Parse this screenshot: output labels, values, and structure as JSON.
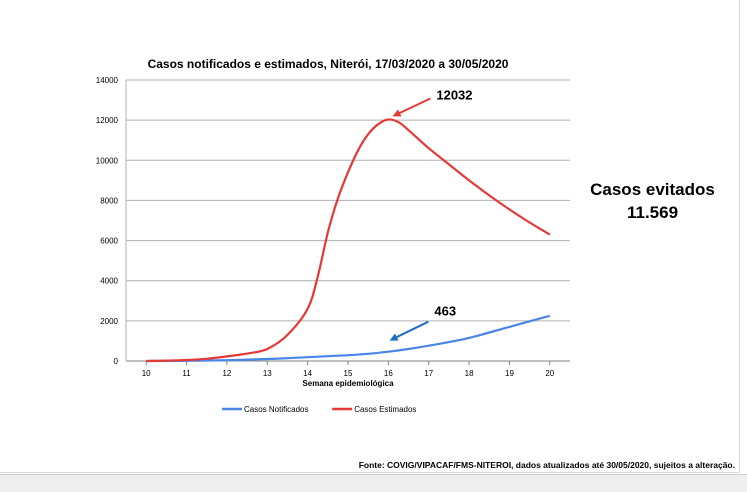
{
  "chart_data": {
    "type": "line",
    "title": "Casos notificados e estimados, Niterói, 17/03/2020 a 30/05/2020",
    "xlabel": "Semana epidemiológica",
    "ylabel": "",
    "x": [
      10,
      11,
      12,
      13,
      14,
      15,
      16,
      17,
      18,
      19,
      20
    ],
    "ylim": [
      0,
      14000
    ],
    "yticks": [
      0,
      2000,
      4000,
      6000,
      8000,
      10000,
      12000,
      14000
    ],
    "grid": true,
    "legend_position": "bottom",
    "series": [
      {
        "name": "Casos Notificados",
        "color": "#4a86e8",
        "x": [
          10,
          11,
          12,
          12.5,
          13,
          13.5,
          14,
          14.5,
          15,
          15.5,
          16,
          16.5,
          17,
          17.5,
          18,
          18.5,
          19,
          19.5,
          20
        ],
        "values": [
          0,
          10,
          40,
          70,
          100,
          140,
          190,
          240,
          290,
          360,
          463,
          600,
          760,
          940,
          1150,
          1420,
          1700,
          1980,
          2250
        ]
      },
      {
        "name": "Casos Estimados",
        "color": "#e53935",
        "x": [
          10,
          10.5,
          11,
          11.5,
          12,
          12.5,
          13,
          13.5,
          14,
          14.25,
          14.5,
          14.75,
          15,
          15.25,
          15.5,
          15.75,
          16,
          16.25,
          16.5,
          17,
          17.5,
          18,
          18.5,
          19,
          19.5,
          20
        ],
        "values": [
          0,
          20,
          50,
          110,
          230,
          370,
          600,
          1300,
          2600,
          4200,
          6400,
          8100,
          9400,
          10500,
          11300,
          11800,
          12032,
          11900,
          11500,
          10600,
          9800,
          9000,
          8250,
          7550,
          6900,
          6300
        ]
      }
    ],
    "annotations": [
      {
        "text": "12032",
        "x": 16,
        "y": 12032,
        "color": "#e53935"
      },
      {
        "text": "463",
        "x": 16,
        "y": 463,
        "color": "#1f6fbf"
      }
    ]
  },
  "side_text": {
    "line1": "Casos evitados",
    "line2": "11.569"
  },
  "source_text": "Fonte: COVIG/VIPACAF/FMS-NITEROI, dados atualizados até 30/05/2020, sujeitos a alteração."
}
